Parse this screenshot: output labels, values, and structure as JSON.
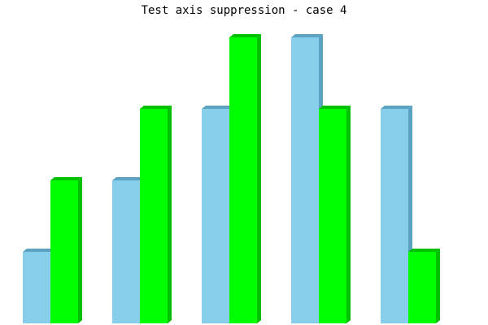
{
  "chart_data": {
    "type": "bar",
    "title": "Test axis suppression - case 4",
    "xlabel": "",
    "ylabel": "",
    "axes_visible": false,
    "grid": false,
    "style": "3d",
    "categories": [
      "",
      "",
      "",
      "",
      ""
    ],
    "ylim": [
      0,
      4
    ],
    "series": [
      {
        "values": [
          1,
          2,
          3,
          4,
          3
        ],
        "color": "#87CEEB",
        "side_color": "#5BA3C0"
      },
      {
        "values": [
          2,
          3,
          4,
          3,
          1
        ],
        "color": "#00FF00",
        "side_color": "#00C000"
      }
    ]
  }
}
